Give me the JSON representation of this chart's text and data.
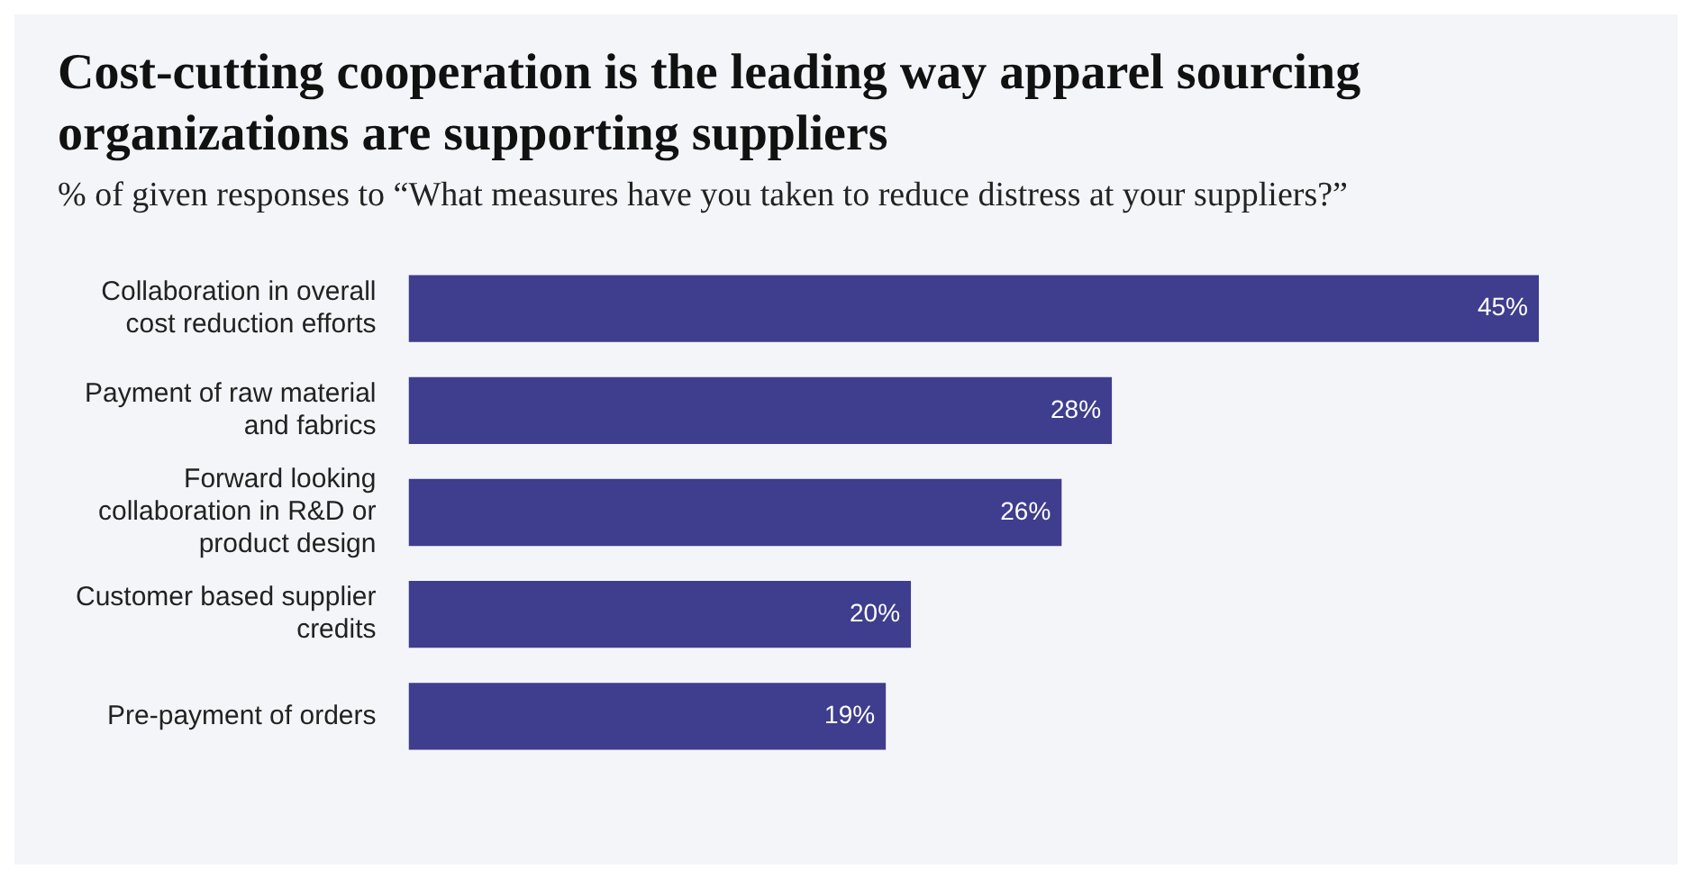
{
  "chart_data": {
    "type": "bar",
    "orientation": "horizontal",
    "title": "Cost-cutting cooperation is the leading way apparel sourcing organizations are supporting suppliers",
    "subtitle": "% of given responses to “What measures have you taken to reduce distress at your suppliers?”",
    "categories": [
      "Collaboration in overall cost reduction efforts",
      "Payment of raw material and fabrics",
      "Forward looking collaboration in R&D or product design",
      "Customer based supplier credits",
      "Pre-payment of orders"
    ],
    "values": [
      45,
      28,
      26,
      20,
      19
    ],
    "value_labels": [
      "45%",
      "28%",
      "26%",
      "20%",
      "19%"
    ],
    "color": "#3f3d8e"
  }
}
